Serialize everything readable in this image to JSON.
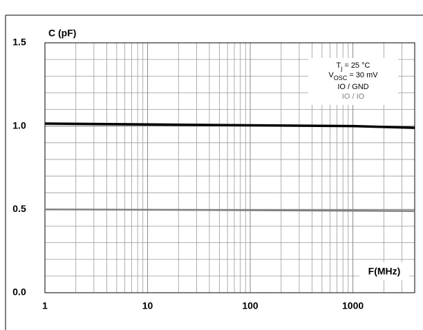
{
  "chart_data": {
    "type": "line",
    "y_label": "C (pF)",
    "x_label": "F(MHz)",
    "x": [
      1,
      10,
      100,
      1000,
      4000
    ],
    "series": [
      {
        "name": "IO / GND",
        "color": "#000000",
        "values": [
          1.015,
          1.01,
          1.005,
          1.0,
          0.99
        ]
      },
      {
        "name": "IO / IO",
        "color": "#808080",
        "values": [
          0.5,
          0.498,
          0.495,
          0.492,
          0.49
        ]
      }
    ],
    "conditions": [
      [
        "T",
        "j",
        " = 25 °C"
      ],
      [
        "V",
        "OSC",
        " = 30 mV"
      ]
    ],
    "xlim": [
      1,
      4000
    ],
    "xticks": [
      1,
      10,
      100,
      1000
    ],
    "x_log": true,
    "ylim": [
      0,
      1.5
    ],
    "yticks": [
      {
        "value": 0,
        "label": "0.0"
      },
      {
        "value": 0.5,
        "label": "0.5"
      },
      {
        "value": 1,
        "label": "1.0"
      },
      {
        "value": 1.5,
        "label": "1.5"
      }
    ],
    "grid": true
  }
}
